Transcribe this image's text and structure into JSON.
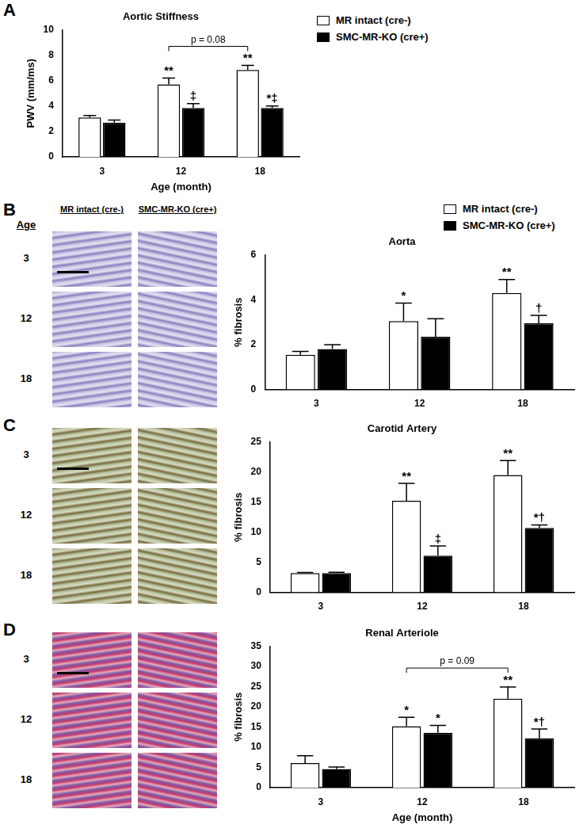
{
  "chart_data": [
    {
      "panel": "A",
      "type": "bar",
      "title": "Aortic Stiffness",
      "x_label": "Age (month)",
      "y_label": "PWV (mm/ms)",
      "categories": [
        "3",
        "12",
        "18"
      ],
      "ylim": [
        0,
        10
      ],
      "yticks": [
        0,
        2,
        4,
        6,
        8,
        10
      ],
      "grid": false,
      "legend": "right",
      "series": [
        {
          "name": "MR intact (cre-)",
          "color": "#ffffff",
          "values": [
            3.1,
            5.7,
            6.85
          ],
          "errors": [
            0.15,
            0.5,
            0.35
          ],
          "annotations": [
            null,
            "**",
            "**"
          ]
        },
        {
          "name": "SMC-MR-KO (cre+)",
          "color": "#000000",
          "values": [
            2.7,
            3.85,
            3.85
          ],
          "errors": [
            0.2,
            0.35,
            0.15
          ],
          "annotations": [
            null,
            "‡",
            "*‡"
          ]
        }
      ],
      "brackets": [
        {
          "series": "MR intact (cre-)",
          "from": "12",
          "to": "18",
          "label": "p = 0.08"
        }
      ]
    },
    {
      "panel": "B",
      "type": "bar",
      "title": "Aorta",
      "y_label": "% fibrosis",
      "categories": [
        "3",
        "12",
        "18"
      ],
      "ylim": [
        0,
        6
      ],
      "yticks": [
        0,
        2,
        4,
        6
      ],
      "grid": false,
      "legend": "right",
      "images": {
        "row_header": "Age",
        "columns": [
          "MR intact (cre-)",
          "SMC-MR-KO (cre+)"
        ],
        "rows": [
          "3",
          "12",
          "18"
        ]
      },
      "series": [
        {
          "name": "MR intact (cre-)",
          "color": "#ffffff",
          "values": [
            1.55,
            3.05,
            4.3
          ],
          "errors": [
            0.15,
            0.8,
            0.6
          ],
          "annotations": [
            null,
            "*",
            "**"
          ]
        },
        {
          "name": "SMC-MR-KO (cre+)",
          "color": "#000000",
          "values": [
            1.8,
            2.35,
            2.95
          ],
          "errors": [
            0.2,
            0.8,
            0.35
          ],
          "annotations": [
            null,
            null,
            "†"
          ]
        }
      ]
    },
    {
      "panel": "C",
      "type": "bar",
      "title": "Carotid Artery",
      "y_label": "% fibrosis",
      "categories": [
        "3",
        "12",
        "18"
      ],
      "ylim": [
        0,
        25
      ],
      "yticks": [
        0,
        5,
        10,
        15,
        20,
        25
      ],
      "grid": false,
      "images": {
        "rows": [
          "3",
          "12",
          "18"
        ]
      },
      "series": [
        {
          "name": "MR intact (cre-)",
          "color": "#ffffff",
          "values": [
            3.2,
            15.2,
            19.5
          ],
          "errors": [
            0.1,
            2.9,
            2.4
          ],
          "annotations": [
            null,
            "**",
            "**"
          ]
        },
        {
          "name": "SMC-MR-KO (cre+)",
          "color": "#000000",
          "values": [
            3.2,
            6.1,
            10.7
          ],
          "errors": [
            0.15,
            1.6,
            0.5
          ],
          "annotations": [
            null,
            "‡",
            "*†"
          ]
        }
      ]
    },
    {
      "panel": "D",
      "type": "bar",
      "title": "Renal Arteriole",
      "x_label": "Age (month)",
      "y_label": "% fibrosis",
      "categories": [
        "3",
        "12",
        "18"
      ],
      "ylim": [
        0,
        35
      ],
      "yticks": [
        0,
        5,
        10,
        15,
        20,
        25,
        30,
        35
      ],
      "grid": false,
      "images": {
        "rows": [
          "3",
          "12",
          "18"
        ]
      },
      "series": [
        {
          "name": "MR intact (cre-)",
          "color": "#ffffff",
          "values": [
            6.1,
            15.2,
            22.0
          ],
          "errors": [
            1.8,
            2.2,
            2.9
          ],
          "annotations": [
            null,
            "*",
            "**"
          ]
        },
        {
          "name": "SMC-MR-KO (cre+)",
          "color": "#000000",
          "values": [
            4.6,
            13.6,
            12.2
          ],
          "errors": [
            0.5,
            1.8,
            2.3
          ],
          "annotations": [
            null,
            "*",
            "*†"
          ]
        }
      ],
      "brackets": [
        {
          "series": "MR intact (cre-)",
          "from": "12",
          "to": "18",
          "label": "p = 0.09"
        }
      ]
    }
  ]
}
